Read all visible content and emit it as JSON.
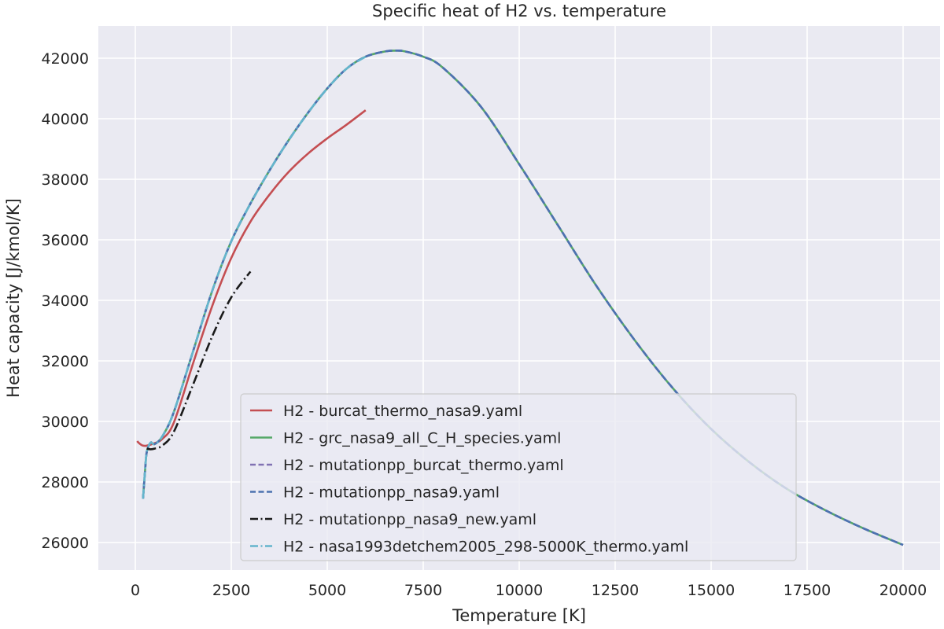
{
  "chart_data": {
    "type": "line",
    "title": "Specific heat of H2 vs. temperature",
    "xlabel": "Temperature [K]",
    "ylabel": "Heat capacity [J/kmol/K]",
    "xlim": [
      -1000,
      21000
    ],
    "ylim": [
      25100,
      43000
    ],
    "xticks": [
      0,
      2500,
      5000,
      7500,
      10000,
      12500,
      15000,
      17500,
      20000
    ],
    "xtick_labels": [
      "0",
      "2500",
      "5000",
      "7500",
      "10000",
      "12500",
      "15000",
      "17500",
      "20000"
    ],
    "yticks": [
      26000,
      28000,
      30000,
      32000,
      34000,
      36000,
      38000,
      40000,
      42000
    ],
    "ytick_labels": [
      "26000",
      "28000",
      "30000",
      "32000",
      "34000",
      "36000",
      "38000",
      "40000",
      "42000"
    ],
    "grid": true,
    "legend_position": "lower center",
    "series": [
      {
        "name": "H2 - burcat_thermo_nasa9.yaml",
        "color": "#c44e52",
        "dash": "solid",
        "x": [
          50,
          100,
          200,
          300,
          500,
          700,
          1000,
          1500,
          2000,
          2500,
          3000,
          3500,
          4000,
          4500,
          5000,
          5500,
          6000
        ],
        "y": [
          29350,
          29280,
          29200,
          29200,
          29280,
          29420,
          29950,
          31900,
          33800,
          35400,
          36600,
          37500,
          38250,
          38850,
          39350,
          39800,
          40280
        ]
      },
      {
        "name": "H2 - grc_nasa9_all_C_H_species.yaml",
        "color": "#55a868",
        "dash": "solid",
        "x": [
          200,
          250,
          300,
          400,
          500,
          700,
          1000,
          1500,
          2000,
          2500,
          3000,
          3500,
          4000,
          4500,
          5000,
          5500,
          6000,
          6500,
          6750,
          7000,
          7500,
          8000,
          9000,
          10000,
          11000,
          12000,
          13000,
          14000,
          15000,
          16000,
          17000,
          18000,
          19000,
          20000
        ],
        "y": [
          27450,
          28300,
          29000,
          29300,
          29250,
          29500,
          30300,
          32300,
          34300,
          35950,
          37200,
          38300,
          39300,
          40200,
          41000,
          41650,
          42050,
          42220,
          42250,
          42230,
          42050,
          41700,
          40400,
          38500,
          36500,
          34500,
          32700,
          31100,
          29750,
          28650,
          27750,
          27050,
          26450,
          25920
        ]
      },
      {
        "name": "H2 - mutationpp_burcat_thermo.yaml",
        "color": "#8172b3",
        "dash": "dashed",
        "x": [
          200,
          250,
          300,
          400,
          500,
          700,
          1000,
          1500,
          2000,
          2500,
          3000,
          3500,
          4000,
          4500,
          5000,
          5500,
          6000,
          6500,
          6750,
          7000,
          7500,
          8000,
          9000,
          10000,
          11000,
          12000,
          13000,
          14000,
          15000,
          16000,
          17000,
          18000,
          19000,
          20000
        ],
        "y": [
          27450,
          28300,
          29000,
          29300,
          29250,
          29500,
          30300,
          32300,
          34300,
          35950,
          37200,
          38300,
          39300,
          40200,
          41000,
          41650,
          42050,
          42220,
          42250,
          42230,
          42050,
          41700,
          40400,
          38500,
          36500,
          34500,
          32700,
          31100,
          29750,
          28650,
          27750,
          27050,
          26450,
          25920
        ]
      },
      {
        "name": "H2 - mutationpp_nasa9.yaml",
        "color": "#4c72b0",
        "dash": "dashed",
        "x": [
          200,
          250,
          300,
          400,
          500,
          700,
          1000,
          1500,
          2000,
          2500,
          3000,
          3500,
          4000,
          4500,
          5000,
          5500,
          6000,
          6500,
          6750,
          7000,
          7500,
          8000,
          9000,
          10000,
          11000,
          12000,
          13000,
          14000,
          15000,
          16000,
          17000,
          18000,
          19000,
          20000
        ],
        "y": [
          27450,
          28300,
          29000,
          29300,
          29250,
          29500,
          30300,
          32300,
          34300,
          35950,
          37200,
          38300,
          39300,
          40200,
          41000,
          41650,
          42050,
          42220,
          42250,
          42230,
          42050,
          41700,
          40400,
          38500,
          36500,
          34500,
          32700,
          31100,
          29750,
          28650,
          27750,
          27050,
          26450,
          25920
        ]
      },
      {
        "name": "H2 - mutationpp_nasa9_new.yaml",
        "color": "#1a1a1a",
        "dash": "dashdot",
        "x": [
          300,
          400,
          500,
          700,
          1000,
          1500,
          2000,
          2500,
          3000
        ],
        "y": [
          29100,
          29080,
          29100,
          29200,
          29650,
          31200,
          32800,
          34100,
          34950
        ]
      },
      {
        "name": "H2 - nasa1993detchem2005_298-5000K_thermo.yaml",
        "color": "#64b5cd",
        "dash": "dashdot",
        "x": [
          200,
          250,
          300,
          400,
          500,
          700,
          1000,
          1500,
          2000,
          2500,
          3000,
          3500,
          4000,
          4500,
          5000,
          5500,
          6000
        ],
        "y": [
          27450,
          28300,
          29000,
          29300,
          29250,
          29500,
          30300,
          32300,
          34300,
          35950,
          37200,
          38300,
          39300,
          40200,
          41000,
          41650,
          42050
        ]
      }
    ]
  }
}
